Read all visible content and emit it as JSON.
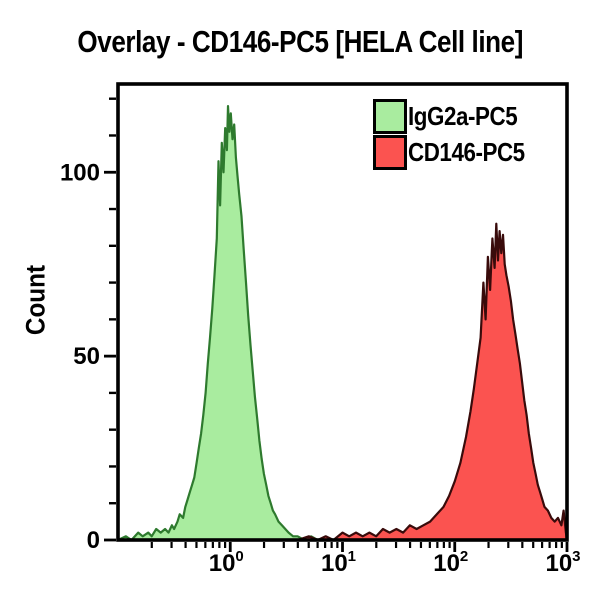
{
  "title": "Overlay - CD146-PC5 [HELA Cell line]",
  "colors": {
    "background": "#ffffff",
    "axis": "#000000",
    "green_fill": "#a9ec9f",
    "green_stroke": "#2e7a2e",
    "red_fill": "#fb5350",
    "red_stroke": "#390b0b"
  },
  "legend": {
    "items": [
      {
        "label": "IgG2a-PC5",
        "fill": "#a9ec9f",
        "border": "#000000"
      },
      {
        "label": "CD146-PC5",
        "fill": "#fb5350",
        "border": "#000000"
      }
    ]
  },
  "chart_data": {
    "type": "area",
    "subtype": "flow-cytometry-histogram-overlay",
    "title": "Overlay - CD146-PC5 [HELA Cell line]",
    "xlabel": "",
    "ylabel": "Count",
    "x_scale": "log10",
    "xlim": [
      0.1,
      1000
    ],
    "ylim": [
      0,
      124
    ],
    "grid": false,
    "legend_position": "top-right-inside",
    "y_ticks_major": [
      0,
      50,
      100
    ],
    "y_tick_minor_step": 10,
    "x_tick_exponents": [
      0,
      1,
      2,
      3
    ],
    "x_tick_label_base": "10",
    "series": [
      {
        "name": "IgG2a-PC5",
        "fill": "#a9ec9f",
        "stroke": "#2e7a2e",
        "peak_x": 1.0,
        "peak_count": 118,
        "points_logx_count": [
          [
            -1.0,
            0
          ],
          [
            -0.93,
            1
          ],
          [
            -0.88,
            0
          ],
          [
            -0.82,
            2
          ],
          [
            -0.78,
            1
          ],
          [
            -0.73,
            2
          ],
          [
            -0.7,
            1
          ],
          [
            -0.66,
            3
          ],
          [
            -0.62,
            2
          ],
          [
            -0.58,
            3
          ],
          [
            -0.55,
            2
          ],
          [
            -0.52,
            4
          ],
          [
            -0.5,
            3
          ],
          [
            -0.47,
            5
          ],
          [
            -0.45,
            7
          ],
          [
            -0.42,
            6
          ],
          [
            -0.4,
            9
          ],
          [
            -0.38,
            11
          ],
          [
            -0.36,
            13
          ],
          [
            -0.34,
            15
          ],
          [
            -0.32,
            17
          ],
          [
            -0.3,
            21
          ],
          [
            -0.28,
            25
          ],
          [
            -0.26,
            29
          ],
          [
            -0.24,
            34
          ],
          [
            -0.22,
            40
          ],
          [
            -0.2,
            48
          ],
          [
            -0.18,
            55
          ],
          [
            -0.16,
            63
          ],
          [
            -0.14,
            72
          ],
          [
            -0.12,
            82
          ],
          [
            -0.105,
            103
          ],
          [
            -0.09,
            91
          ],
          [
            -0.075,
            108
          ],
          [
            -0.06,
            100
          ],
          [
            -0.045,
            112
          ],
          [
            -0.03,
            106
          ],
          [
            -0.02,
            118
          ],
          [
            -0.008,
            111
          ],
          [
            0.005,
            116
          ],
          [
            0.02,
            109
          ],
          [
            0.035,
            113
          ],
          [
            0.05,
            104
          ],
          [
            0.065,
            99
          ],
          [
            0.08,
            94
          ],
          [
            0.1,
            88
          ],
          [
            0.12,
            79
          ],
          [
            0.14,
            70
          ],
          [
            0.16,
            61
          ],
          [
            0.18,
            53
          ],
          [
            0.2,
            46
          ],
          [
            0.22,
            39
          ],
          [
            0.24,
            33
          ],
          [
            0.26,
            27
          ],
          [
            0.28,
            22
          ],
          [
            0.3,
            18
          ],
          [
            0.32,
            15
          ],
          [
            0.34,
            12
          ],
          [
            0.36,
            10
          ],
          [
            0.38,
            8
          ],
          [
            0.4,
            7
          ],
          [
            0.43,
            5
          ],
          [
            0.46,
            4
          ],
          [
            0.49,
            3
          ],
          [
            0.52,
            2
          ],
          [
            0.56,
            1
          ],
          [
            0.6,
            1
          ],
          [
            0.66,
            0
          ],
          [
            0.72,
            1
          ],
          [
            0.78,
            0
          ]
        ]
      },
      {
        "name": "CD146-PC5",
        "fill": "#fb5350",
        "stroke": "#390b0b",
        "peak_x": 235,
        "peak_count": 86,
        "points_logx_count": [
          [
            0.6,
            0
          ],
          [
            0.7,
            1
          ],
          [
            0.78,
            0
          ],
          [
            0.85,
            1
          ],
          [
            0.92,
            0
          ],
          [
            1.0,
            2
          ],
          [
            1.06,
            1
          ],
          [
            1.12,
            2
          ],
          [
            1.18,
            1
          ],
          [
            1.24,
            2
          ],
          [
            1.3,
            1
          ],
          [
            1.36,
            3
          ],
          [
            1.42,
            2
          ],
          [
            1.48,
            3
          ],
          [
            1.54,
            2
          ],
          [
            1.6,
            4
          ],
          [
            1.66,
            3
          ],
          [
            1.72,
            4
          ],
          [
            1.78,
            5
          ],
          [
            1.84,
            7
          ],
          [
            1.9,
            9
          ],
          [
            1.95,
            12
          ],
          [
            2.0,
            16
          ],
          [
            2.05,
            21
          ],
          [
            2.1,
            28
          ],
          [
            2.14,
            35
          ],
          [
            2.17,
            41
          ],
          [
            2.2,
            48
          ],
          [
            2.23,
            55
          ],
          [
            2.255,
            70
          ],
          [
            2.275,
            60
          ],
          [
            2.295,
            77
          ],
          [
            2.315,
            68
          ],
          [
            2.335,
            82
          ],
          [
            2.355,
            74
          ],
          [
            2.37,
            86
          ],
          [
            2.385,
            76
          ],
          [
            2.4,
            84
          ],
          [
            2.415,
            78
          ],
          [
            2.43,
            83
          ],
          [
            2.445,
            75
          ],
          [
            2.46,
            72
          ],
          [
            2.48,
            69
          ],
          [
            2.5,
            65
          ],
          [
            2.52,
            60
          ],
          [
            2.54,
            56
          ],
          [
            2.56,
            52
          ],
          [
            2.58,
            48
          ],
          [
            2.6,
            43
          ],
          [
            2.62,
            38
          ],
          [
            2.64,
            34
          ],
          [
            2.66,
            29
          ],
          [
            2.68,
            25
          ],
          [
            2.7,
            21
          ],
          [
            2.72,
            18
          ],
          [
            2.74,
            15
          ],
          [
            2.76,
            13
          ],
          [
            2.78,
            11
          ],
          [
            2.8,
            9
          ],
          [
            2.83,
            8
          ],
          [
            2.86,
            6
          ],
          [
            2.89,
            5
          ],
          [
            2.92,
            6
          ],
          [
            2.95,
            4
          ],
          [
            2.97,
            8
          ],
          [
            2.99,
            2
          ],
          [
            3.0,
            0
          ]
        ]
      }
    ]
  }
}
